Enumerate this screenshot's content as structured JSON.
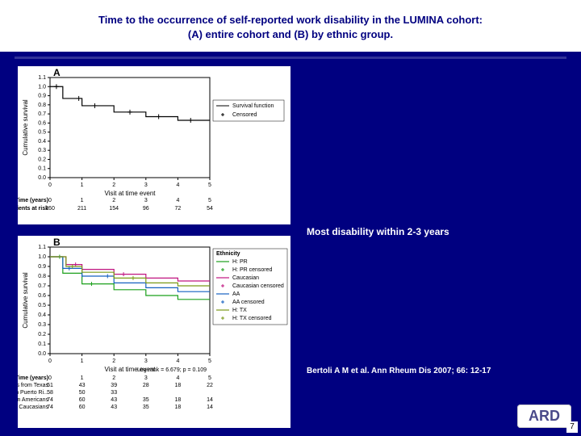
{
  "title_line1": "Time to the occurrence of self-reported work disability in the LUMINA cohort:",
  "title_line2": "(A) entire cohort and (B) by ethnic group.",
  "annotation": "Most disability within 2-3 years",
  "citation": "Bertoli A M et al. Ann Rheum Dis 2007; 66: 12-17",
  "logo_text": "ARD",
  "page_number": "7",
  "panelA": {
    "letter": "A",
    "ylabel": "Cumulative survival",
    "xlabel": "Visit at time event",
    "xlim": [
      0,
      5
    ],
    "xtick_step": 1,
    "ylim": [
      0,
      1.1
    ],
    "ytick_step": 0.1,
    "series": {
      "name": "Survival function",
      "color": "#000000",
      "points": [
        [
          0,
          1.0
        ],
        [
          0.4,
          1.0
        ],
        [
          0.4,
          0.87
        ],
        [
          1,
          0.87
        ],
        [
          1,
          0.79
        ],
        [
          2,
          0.79
        ],
        [
          2,
          0.72
        ],
        [
          3,
          0.72
        ],
        [
          3,
          0.67
        ],
        [
          4,
          0.67
        ],
        [
          4,
          0.63
        ],
        [
          5,
          0.63
        ]
      ]
    },
    "censor_marks": {
      "label": "Censored",
      "color": "#000000",
      "marker": "plus",
      "points": [
        [
          0.2,
          1.0
        ],
        [
          0.9,
          0.87
        ],
        [
          1.4,
          0.79
        ],
        [
          2.5,
          0.72
        ],
        [
          3.4,
          0.67
        ],
        [
          4.4,
          0.63
        ]
      ]
    },
    "table": {
      "row_labels": [
        "Time (years)",
        "Patients at risk"
      ],
      "cols": [
        "0",
        "1",
        "2",
        "3",
        "4",
        "5"
      ],
      "rows": [
        [
          "0",
          "1",
          "2",
          "3",
          "4",
          "5"
        ],
        [
          "260",
          "211",
          "154",
          "96",
          "72",
          "54"
        ]
      ]
    }
  },
  "panelB": {
    "letter": "B",
    "ylabel": "Cumulative survival",
    "xlabel": "Visit at time event",
    "xlim": [
      0,
      5
    ],
    "xtick_step": 1,
    "ylim": [
      0,
      1.1
    ],
    "ytick_step": 0.1,
    "footer_stat": "Log rank = 6.679; p = 0.109",
    "legend_title": "Ethnicity",
    "series": [
      {
        "name": "H: PR",
        "color": "#1ba01b",
        "points": [
          [
            0,
            1.0
          ],
          [
            0.4,
            1.0
          ],
          [
            0.4,
            0.83
          ],
          [
            1,
            0.83
          ],
          [
            1,
            0.72
          ],
          [
            2,
            0.72
          ],
          [
            2,
            0.66
          ],
          [
            3,
            0.66
          ],
          [
            3,
            0.6
          ],
          [
            4,
            0.6
          ],
          [
            4,
            0.56
          ],
          [
            5,
            0.56
          ]
        ]
      },
      {
        "name": "H: PR censored",
        "color": "#1ba01b",
        "marker": "plus",
        "points": [
          [
            0.3,
            1.0
          ],
          [
            1.3,
            0.72
          ]
        ]
      },
      {
        "name": "Caucasian",
        "color": "#c01580",
        "points": [
          [
            0,
            1.0
          ],
          [
            0.5,
            1.0
          ],
          [
            0.5,
            0.92
          ],
          [
            1,
            0.92
          ],
          [
            1,
            0.87
          ],
          [
            2,
            0.87
          ],
          [
            2,
            0.82
          ],
          [
            3,
            0.82
          ],
          [
            3,
            0.78
          ],
          [
            4,
            0.78
          ],
          [
            4,
            0.75
          ],
          [
            5,
            0.75
          ]
        ]
      },
      {
        "name": "Caucasian censored",
        "color": "#c01580",
        "marker": "plus",
        "points": [
          [
            0.8,
            0.92
          ],
          [
            2.3,
            0.82
          ]
        ]
      },
      {
        "name": "AA",
        "color": "#1560c0",
        "points": [
          [
            0,
            1.0
          ],
          [
            0.4,
            1.0
          ],
          [
            0.4,
            0.88
          ],
          [
            1,
            0.88
          ],
          [
            1,
            0.8
          ],
          [
            2,
            0.8
          ],
          [
            2,
            0.73
          ],
          [
            3,
            0.73
          ],
          [
            3,
            0.68
          ],
          [
            4,
            0.68
          ],
          [
            4,
            0.64
          ],
          [
            5,
            0.64
          ]
        ]
      },
      {
        "name": "AA censored",
        "color": "#1560c0",
        "marker": "plus",
        "points": [
          [
            0.6,
            0.88
          ],
          [
            1.8,
            0.8
          ]
        ]
      },
      {
        "name": "H: TX",
        "color": "#7a9a18",
        "points": [
          [
            0,
            1.0
          ],
          [
            0.5,
            1.0
          ],
          [
            0.5,
            0.9
          ],
          [
            1,
            0.9
          ],
          [
            1,
            0.84
          ],
          [
            2,
            0.84
          ],
          [
            2,
            0.78
          ],
          [
            3,
            0.78
          ],
          [
            3,
            0.73
          ],
          [
            4,
            0.73
          ],
          [
            4,
            0.7
          ],
          [
            5,
            0.7
          ]
        ]
      },
      {
        "name": "H: TX censored",
        "color": "#7a9a18",
        "marker": "plus",
        "points": [
          [
            0.7,
            0.9
          ],
          [
            2.6,
            0.78
          ]
        ]
      }
    ],
    "table": {
      "row_labels": [
        "Time (years)",
        "Hispanics from Texas",
        "Hispanics from Puerto Ri...",
        "African Americans",
        "Caucasians"
      ],
      "cols": [
        "0",
        "1",
        "2",
        "3",
        "4",
        "5"
      ],
      "rows": [
        [
          "0",
          "1",
          "2",
          "3",
          "4",
          "5"
        ],
        [
          "51",
          "43",
          "39",
          "28",
          "18",
          "22"
        ],
        [
          "58",
          "50",
          "33",
          "",
          "",
          ""
        ],
        [
          "74",
          "60",
          "43",
          "35",
          "18",
          "14"
        ],
        [
          "74",
          "60",
          "43",
          "35",
          "18",
          "14"
        ]
      ]
    }
  },
  "colors": {
    "bg": "#000080",
    "panel_bg": "#ffffff",
    "frame": "#000000"
  }
}
